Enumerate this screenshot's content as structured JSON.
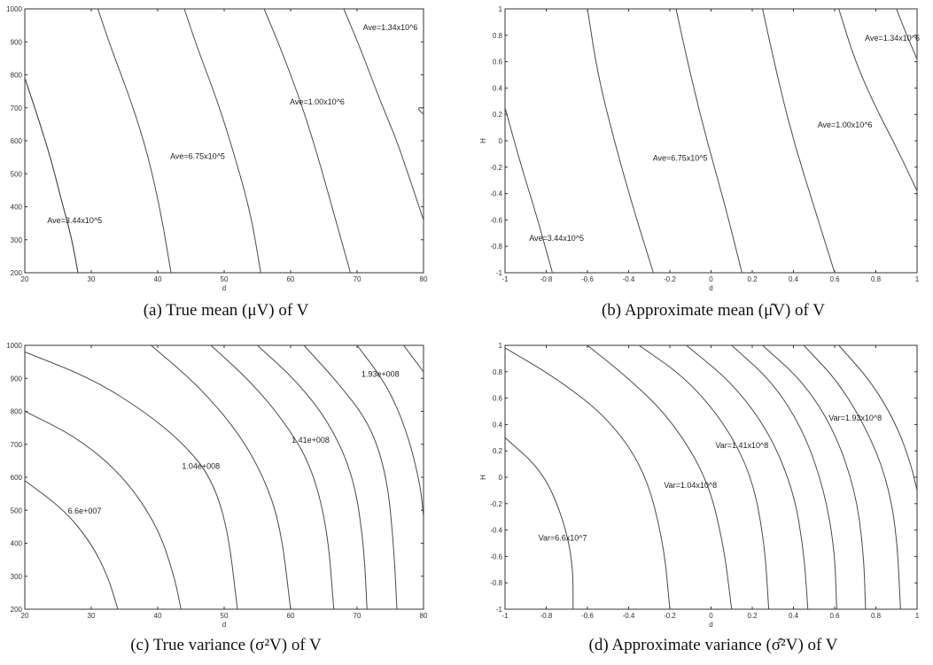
{
  "captions": [
    "(a)  True mean  (μV)  of  V",
    "(b)  Approximate mean  (μ̂V)  of  V",
    "(c)  True variance  (σ²V)  of  V",
    "(d)  Approximate variance  (σ̂²V)  of  V"
  ],
  "chart_data": [
    {
      "type": "contour",
      "xlabel": "d",
      "ylabel": "",
      "xlim": [
        20,
        80
      ],
      "ylim": [
        200,
        1000
      ],
      "xticks": [
        "20",
        "30",
        "40",
        "50",
        "60",
        "70",
        "80"
      ],
      "yticks": [
        "200",
        "300",
        "400",
        "500",
        "600",
        "700",
        "800",
        "900",
        "1000"
      ],
      "contours": [
        {
          "label": "",
          "points": [
            [
              20,
              790
            ],
            [
              22,
              670
            ],
            [
              24,
              540
            ],
            [
              25.5,
              420
            ],
            [
              27,
              310
            ],
            [
              28,
              200
            ]
          ]
        },
        {
          "label": "Ave=3.44x10^5",
          "label_at": [
            27.5,
            350
          ],
          "points": [
            [
              20,
              790
            ],
            [
              22,
              670
            ],
            [
              24,
              540
            ],
            [
              25.5,
              420
            ],
            [
              27,
              310
            ],
            [
              28,
              200
            ]
          ]
        },
        {
          "label": "",
          "points": [
            [
              31,
              1000
            ],
            [
              33,
              880
            ],
            [
              36,
              720
            ],
            [
              38.5,
              560
            ],
            [
              40.5,
              380
            ],
            [
              42,
              200
            ]
          ]
        },
        {
          "label": "Ave=6.75x10^5",
          "label_at": [
            46,
            545
          ],
          "points": [
            [
              44,
              1000
            ],
            [
              46,
              880
            ],
            [
              49,
              720
            ],
            [
              51.5,
              560
            ],
            [
              54,
              380
            ],
            [
              55.5,
              200
            ]
          ]
        },
        {
          "label": "",
          "points": [
            [
              56,
              1000
            ],
            [
              58.5,
              880
            ],
            [
              61.5,
              720
            ],
            [
              64,
              560
            ],
            [
              66.5,
              380
            ],
            [
              69,
              200
            ]
          ]
        },
        {
          "label": "Ave=1.00x10^6",
          "label_at": [
            64,
            710
          ],
          "points": [
            [
              68,
              1000
            ],
            [
              70.5,
              880
            ],
            [
              73.5,
              720
            ],
            [
              76,
              600
            ],
            [
              78.5,
              450
            ],
            [
              80,
              360
            ]
          ]
        },
        {
          "label": "Ave=1.34x10^6",
          "label_at": [
            75,
            935
          ],
          "points": [
            [
              80,
              680
            ],
            [
              79,
              700
            ],
            [
              80,
              700
            ]
          ]
        }
      ]
    },
    {
      "type": "contour",
      "xlabel": "d",
      "ylabel": "H",
      "xlim": [
        -1,
        1
      ],
      "ylim": [
        -1,
        1
      ],
      "xticks": [
        "-1",
        "-0.8",
        "-0.6",
        "-0.4",
        "-0.2",
        "0",
        "0.2",
        "0.4",
        "0.6",
        "0.8",
        "1"
      ],
      "yticks": [
        "-1",
        "-0.8",
        "-0.6",
        "-0.4",
        "-0.2",
        "0",
        "0.2",
        "0.4",
        "0.6",
        "0.8",
        "1"
      ],
      "contours": [
        {
          "label": "Ave=3.44x10^5",
          "label_at": [
            -0.75,
            -0.76
          ],
          "points": [
            [
              -1,
              0.25
            ],
            [
              -0.92,
              -0.2
            ],
            [
              -0.85,
              -0.55
            ],
            [
              -0.77,
              -1
            ]
          ]
        },
        {
          "label": "",
          "points": [
            [
              -0.6,
              1
            ],
            [
              -0.55,
              0.5
            ],
            [
              -0.47,
              0
            ],
            [
              -0.38,
              -0.5
            ],
            [
              -0.28,
              -1
            ]
          ]
        },
        {
          "label": "Ave=6.75x10^5",
          "label_at": [
            -0.15,
            -0.15
          ],
          "points": [
            [
              -0.17,
              1
            ],
            [
              -0.1,
              0.5
            ],
            [
              -0.02,
              0
            ],
            [
              0.07,
              -0.5
            ],
            [
              0.15,
              -1
            ]
          ]
        },
        {
          "label": "",
          "points": [
            [
              0.25,
              1
            ],
            [
              0.32,
              0.5
            ],
            [
              0.4,
              0
            ],
            [
              0.5,
              -0.5
            ],
            [
              0.6,
              -1
            ]
          ]
        },
        {
          "label": "Ave=1.00x10^6",
          "label_at": [
            0.65,
            0.1
          ],
          "points": [
            [
              0.62,
              1
            ],
            [
              0.7,
              0.6
            ],
            [
              0.8,
              0.25
            ],
            [
              0.9,
              -0.05
            ],
            [
              1,
              -0.38
            ]
          ]
        },
        {
          "label": "Ave=1.34x10^6",
          "label_at": [
            0.88,
            0.76
          ],
          "points": [
            [
              0.9,
              1
            ],
            [
              0.95,
              0.8
            ],
            [
              1,
              0.62
            ]
          ]
        }
      ]
    },
    {
      "type": "contour",
      "xlabel": "d",
      "ylabel": "",
      "xlim": [
        20,
        80
      ],
      "ylim": [
        200,
        1000
      ],
      "xticks": [
        "20",
        "30",
        "40",
        "50",
        "60",
        "70",
        "80"
      ],
      "yticks": [
        "200",
        "300",
        "400",
        "500",
        "600",
        "700",
        "800",
        "900",
        "1000"
      ],
      "contours": [
        {
          "label": "6.6e+007",
          "label_at": [
            29,
            490
          ],
          "points": [
            [
              20,
              590
            ],
            [
              26,
              500
            ],
            [
              30,
              400
            ],
            [
              32.5,
              300
            ],
            [
              34,
              200
            ]
          ]
        },
        {
          "label": "",
          "points": [
            [
              20,
              800
            ],
            [
              28,
              720
            ],
            [
              35,
              600
            ],
            [
              40,
              450
            ],
            [
              42.5,
              300
            ],
            [
              43.5,
              200
            ]
          ]
        },
        {
          "label": "1.04e+008",
          "label_at": [
            46.5,
            625
          ],
          "points": [
            [
              20,
              980
            ],
            [
              30,
              900
            ],
            [
              38,
              800
            ],
            [
              44,
              700
            ],
            [
              48,
              600
            ],
            [
              50.5,
              450
            ],
            [
              52,
              200
            ]
          ]
        },
        {
          "label": "",
          "points": [
            [
              39,
              1000
            ],
            [
              46,
              880
            ],
            [
              52,
              740
            ],
            [
              56,
              600
            ],
            [
              58.5,
              450
            ],
            [
              60,
              200
            ]
          ]
        },
        {
          "label": "1.41e+008",
          "label_at": [
            63,
            705
          ],
          "points": [
            [
              48,
              1000
            ],
            [
              54,
              890
            ],
            [
              59,
              770
            ],
            [
              63,
              640
            ],
            [
              65.5,
              450
            ],
            [
              66.5,
              200
            ]
          ]
        },
        {
          "label": "",
          "points": [
            [
              55,
              1000
            ],
            [
              61,
              890
            ],
            [
              66,
              760
            ],
            [
              69.5,
              600
            ],
            [
              71,
              400
            ],
            [
              71.5,
              200
            ]
          ]
        },
        {
          "label": "1.93e+008",
          "label_at": [
            73.5,
            905
          ],
          "points": [
            [
              62,
              1000
            ],
            [
              67,
              890
            ],
            [
              72,
              760
            ],
            [
              74.5,
              600
            ],
            [
              75.5,
              400
            ],
            [
              76,
              200
            ]
          ]
        },
        {
          "label": "",
          "points": [
            [
              70,
              1000
            ],
            [
              74.5,
              880
            ],
            [
              77.5,
              740
            ],
            [
              79.5,
              580
            ],
            [
              80,
              480
            ]
          ]
        },
        {
          "label": "",
          "points": [
            [
              77,
              1000
            ],
            [
              80,
              920
            ]
          ]
        }
      ]
    },
    {
      "type": "contour",
      "xlabel": "d",
      "ylabel": "H",
      "xlim": [
        -1,
        1
      ],
      "ylim": [
        -1,
        1
      ],
      "xticks": [
        "-1",
        "-0.8",
        "-0.6",
        "-0.4",
        "-0.2",
        "0",
        "0.2",
        "0.4",
        "0.6",
        "0.8",
        "1"
      ],
      "yticks": [
        "-1",
        "-0.8",
        "-0.6",
        "-0.4",
        "-0.2",
        "0",
        "0.2",
        "0.4",
        "0.6",
        "0.8",
        "1"
      ],
      "contours": [
        {
          "label": "Var=6.6x10^7",
          "label_at": [
            -0.72,
            -0.48
          ],
          "points": [
            [
              -1,
              0.3
            ],
            [
              -0.82,
              0.05
            ],
            [
              -0.72,
              -0.3
            ],
            [
              -0.67,
              -0.65
            ],
            [
              -0.67,
              -1
            ]
          ]
        },
        {
          "label": "",
          "points": [
            [
              -1,
              0.98
            ],
            [
              -0.75,
              0.75
            ],
            [
              -0.5,
              0.45
            ],
            [
              -0.32,
              0.05
            ],
            [
              -0.23,
              -0.5
            ],
            [
              -0.2,
              -1
            ]
          ]
        },
        {
          "label": "Var=1.04x10^8",
          "label_at": [
            -0.1,
            -0.08
          ],
          "points": [
            [
              -0.6,
              1
            ],
            [
              -0.4,
              0.75
            ],
            [
              -0.2,
              0.45
            ],
            [
              -0.02,
              0
            ],
            [
              0.06,
              -0.5
            ],
            [
              0.1,
              -1
            ]
          ]
        },
        {
          "label": "",
          "points": [
            [
              -0.35,
              1
            ],
            [
              -0.12,
              0.75
            ],
            [
              0.07,
              0.4
            ],
            [
              0.2,
              0
            ],
            [
              0.26,
              -0.5
            ],
            [
              0.28,
              -1
            ]
          ]
        },
        {
          "label": "Var=1.41x10^8",
          "label_at": [
            0.15,
            0.22
          ],
          "points": [
            [
              -0.12,
              1
            ],
            [
              0.1,
              0.72
            ],
            [
              0.28,
              0.35
            ],
            [
              0.4,
              -0.1
            ],
            [
              0.45,
              -0.55
            ],
            [
              0.47,
              -1
            ]
          ]
        },
        {
          "label": "",
          "points": [
            [
              0.1,
              1
            ],
            [
              0.3,
              0.72
            ],
            [
              0.45,
              0.35
            ],
            [
              0.55,
              -0.1
            ],
            [
              0.6,
              -0.55
            ],
            [
              0.61,
              -1
            ]
          ]
        },
        {
          "label": "Var=1.93x10^8",
          "label_at": [
            0.7,
            0.43
          ],
          "points": [
            [
              0.25,
              1
            ],
            [
              0.45,
              0.72
            ],
            [
              0.6,
              0.35
            ],
            [
              0.7,
              -0.1
            ],
            [
              0.74,
              -0.55
            ],
            [
              0.75,
              -1
            ]
          ]
        },
        {
          "label": "",
          "points": [
            [
              0.45,
              1
            ],
            [
              0.62,
              0.72
            ],
            [
              0.76,
              0.35
            ],
            [
              0.85,
              0
            ],
            [
              0.9,
              -0.4
            ],
            [
              0.92,
              -1
            ]
          ]
        },
        {
          "label": "",
          "points": [
            [
              0.62,
              1
            ],
            [
              0.78,
              0.72
            ],
            [
              0.9,
              0.4
            ],
            [
              0.97,
              0.1
            ],
            [
              1,
              -0.1
            ]
          ]
        }
      ]
    }
  ]
}
